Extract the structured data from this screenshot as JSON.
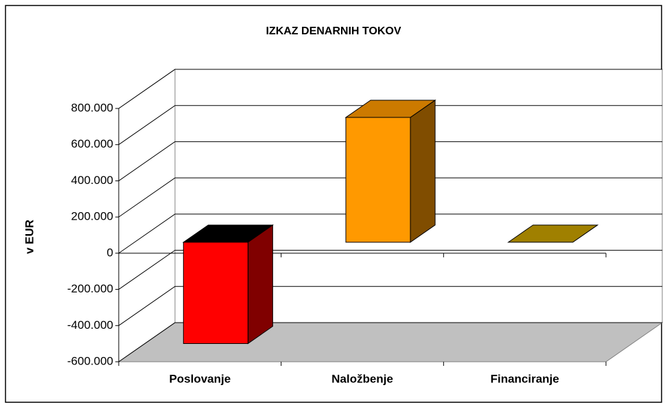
{
  "chart_data": {
    "type": "bar3d",
    "title": "IZKAZ DENARNIH TOKOV",
    "y_label": "v EUR",
    "categories": [
      "Poslovanje",
      "Naložbenje",
      "Financiranje"
    ],
    "values": [
      -560000,
      690000,
      0
    ],
    "colors": [
      "#ff0000",
      "#ff9900",
      "#c8a000"
    ],
    "ylim": [
      -600000,
      800000
    ],
    "yticks": [
      {
        "value": -600000,
        "label": "-600.000"
      },
      {
        "value": -400000,
        "label": "-400.000"
      },
      {
        "value": -200000,
        "label": "-200.000"
      },
      0,
      {
        "value": 200000,
        "label": "200.000"
      },
      {
        "value": 400000,
        "label": "400.000"
      },
      {
        "value": 600000,
        "label": "600.000"
      },
      {
        "value": 800000,
        "label": "800.000"
      }
    ],
    "grid": true
  }
}
